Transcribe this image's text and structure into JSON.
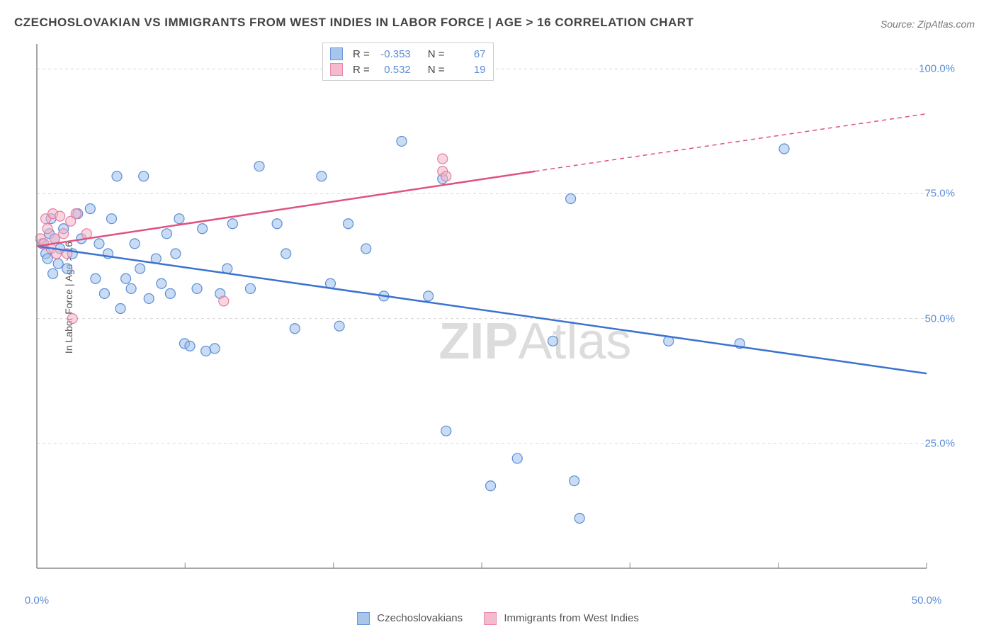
{
  "title": "CZECHOSLOVAKIAN VS IMMIGRANTS FROM WEST INDIES IN LABOR FORCE | AGE > 16 CORRELATION CHART",
  "source_label": "Source: ",
  "source_name": "ZipAtlas.com",
  "watermark_bold": "ZIP",
  "watermark_light": "Atlas",
  "chart": {
    "type": "scatter",
    "ylabel": "In Labor Force | Age > 16",
    "xlim": [
      0,
      50
    ],
    "ylim": [
      0,
      105
    ],
    "xtick_labels": [
      "0.0%",
      "50.0%"
    ],
    "xtick_positions": [
      0,
      50
    ],
    "ytick_labels": [
      "25.0%",
      "50.0%",
      "75.0%",
      "100.0%"
    ],
    "ytick_positions": [
      25,
      50,
      75,
      100
    ],
    "x_inner_ticks": [
      0,
      8.33,
      16.67,
      25,
      33.33,
      41.67,
      50
    ],
    "background_color": "#ffffff",
    "grid_color": "#d8d8d8",
    "axis_color": "#888888",
    "marker_radius": 7,
    "marker_stroke_width": 1.2,
    "trend_line_width": 2.5,
    "series": [
      {
        "name": "Czechoslovakians",
        "fill": "#9fc0eb",
        "fill_opacity": 0.55,
        "stroke": "#5b8dd6",
        "r_value": "-0.353",
        "n_value": "67",
        "trend": {
          "x1": 0,
          "y1": 64.5,
          "x2": 50,
          "y2": 39,
          "color": "#3b72d1"
        },
        "points": [
          [
            0.3,
            65
          ],
          [
            0.5,
            63
          ],
          [
            0.6,
            62
          ],
          [
            0.7,
            67
          ],
          [
            0.8,
            70
          ],
          [
            0.9,
            59
          ],
          [
            1.0,
            66
          ],
          [
            1.2,
            61
          ],
          [
            1.3,
            64
          ],
          [
            1.5,
            68
          ],
          [
            1.7,
            60
          ],
          [
            2.0,
            63
          ],
          [
            2.3,
            71
          ],
          [
            2.5,
            66
          ],
          [
            3.0,
            72
          ],
          [
            3.3,
            58
          ],
          [
            3.5,
            65
          ],
          [
            3.8,
            55
          ],
          [
            4.0,
            63
          ],
          [
            4.2,
            70
          ],
          [
            4.5,
            78.5
          ],
          [
            4.7,
            52
          ],
          [
            5.0,
            58
          ],
          [
            5.3,
            56
          ],
          [
            5.5,
            65
          ],
          [
            5.8,
            60
          ],
          [
            6.0,
            78.5
          ],
          [
            6.3,
            54
          ],
          [
            6.7,
            62
          ],
          [
            7.0,
            57
          ],
          [
            7.3,
            67
          ],
          [
            7.5,
            55
          ],
          [
            7.8,
            63
          ],
          [
            8.0,
            70
          ],
          [
            8.3,
            45
          ],
          [
            8.6,
            44.5
          ],
          [
            9.0,
            56
          ],
          [
            9.3,
            68
          ],
          [
            9.5,
            43.5
          ],
          [
            10.0,
            44
          ],
          [
            10.3,
            55
          ],
          [
            10.7,
            60
          ],
          [
            11.0,
            69
          ],
          [
            12.0,
            56
          ],
          [
            12.5,
            80.5
          ],
          [
            13.5,
            69
          ],
          [
            14.0,
            63
          ],
          [
            14.5,
            48
          ],
          [
            16.0,
            78.5
          ],
          [
            16.5,
            57
          ],
          [
            17.0,
            48.5
          ],
          [
            17.5,
            69
          ],
          [
            18.5,
            64
          ],
          [
            19.5,
            54.5
          ],
          [
            20.5,
            85.5
          ],
          [
            22.0,
            54.5
          ],
          [
            22.8,
            78
          ],
          [
            23.0,
            27.5
          ],
          [
            25.5,
            16.5
          ],
          [
            27.0,
            22
          ],
          [
            29.0,
            45.5
          ],
          [
            30.0,
            74
          ],
          [
            30.2,
            17.5
          ],
          [
            30.5,
            10
          ],
          [
            35.5,
            45.5
          ],
          [
            39.5,
            45
          ],
          [
            42.0,
            84
          ]
        ]
      },
      {
        "name": "Immigrants from West Indies",
        "fill": "#f2b4c6",
        "fill_opacity": 0.55,
        "stroke": "#e67ca1",
        "r_value": "0.532",
        "n_value": "19",
        "trend_solid": {
          "x1": 0,
          "y1": 64.5,
          "x2": 28,
          "y2": 79.5,
          "color": "#e0527e"
        },
        "trend_dashed": {
          "x1": 28,
          "y1": 79.5,
          "x2": 50,
          "y2": 91,
          "color": "#e0527e"
        },
        "points": [
          [
            0.2,
            66
          ],
          [
            0.4,
            65
          ],
          [
            0.5,
            70
          ],
          [
            0.6,
            68
          ],
          [
            0.8,
            64
          ],
          [
            0.9,
            71
          ],
          [
            1.0,
            66
          ],
          [
            1.1,
            63
          ],
          [
            1.3,
            70.5
          ],
          [
            1.5,
            67
          ],
          [
            1.7,
            63
          ],
          [
            1.9,
            69.5
          ],
          [
            2.0,
            50
          ],
          [
            2.2,
            71
          ],
          [
            2.8,
            67
          ],
          [
            10.5,
            53.5
          ],
          [
            22.8,
            82
          ],
          [
            22.8,
            79.5
          ],
          [
            23.0,
            78.5
          ]
        ]
      }
    ]
  },
  "bottom_legend": {
    "items": [
      {
        "label": "Czechoslovakians",
        "fill": "#9fc0eb",
        "stroke": "#5b8dd6"
      },
      {
        "label": "Immigrants from West Indies",
        "fill": "#f2b4c6",
        "stroke": "#e67ca1"
      }
    ]
  },
  "top_legend_labels": {
    "r": "R =",
    "n": "N ="
  }
}
